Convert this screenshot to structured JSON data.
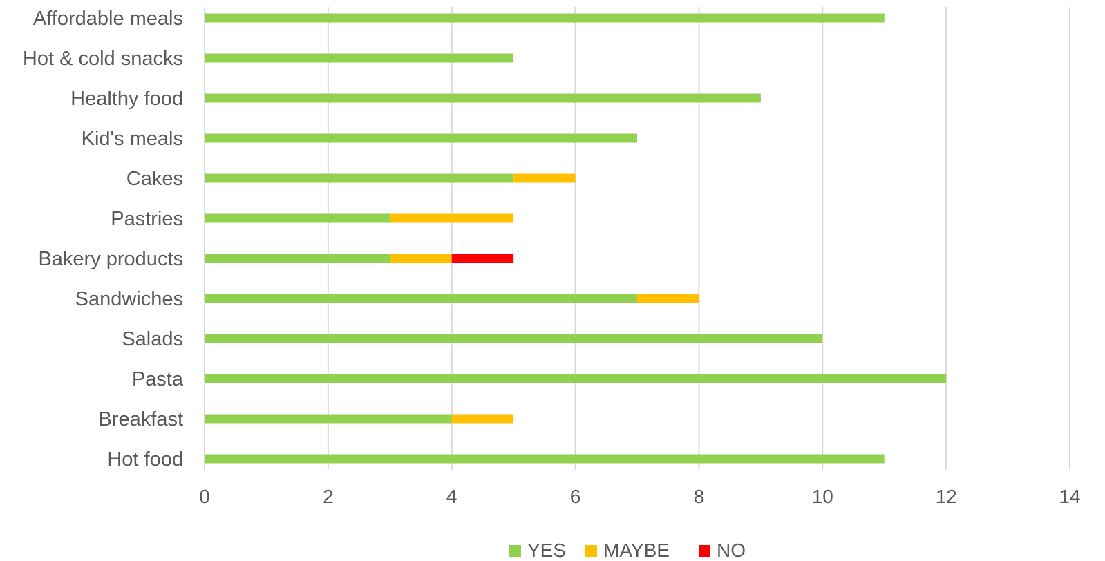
{
  "chart_data": {
    "type": "bar",
    "orientation": "horizontal",
    "stacked": true,
    "categories": [
      "Affordable meals",
      "Hot & cold snacks",
      "Healthy food",
      "Kid's meals",
      "Cakes",
      "Pastries",
      "Bakery products",
      "Sandwiches",
      "Salads",
      "Pasta",
      "Breakfast",
      "Hot food"
    ],
    "series": [
      {
        "name": "YES",
        "color": "#92d050",
        "values": [
          11,
          5,
          9,
          7,
          5,
          3,
          3,
          7,
          10,
          12,
          4,
          11
        ]
      },
      {
        "name": "MAYBE",
        "color": "#ffc000",
        "values": [
          0,
          0,
          0,
          0,
          1,
          2,
          1,
          1,
          0,
          0,
          1,
          0
        ]
      },
      {
        "name": "NO",
        "color": "#ff0000",
        "values": [
          0,
          0,
          0,
          0,
          0,
          0,
          1,
          0,
          0,
          0,
          0,
          0
        ]
      }
    ],
    "xlim": [
      0,
      14
    ],
    "xticks": [
      "0",
      "2",
      "4",
      "6",
      "8",
      "10",
      "12",
      "14"
    ],
    "title": "",
    "xlabel": "",
    "ylabel": "",
    "grid": "vertical",
    "legend_position": "bottom"
  }
}
